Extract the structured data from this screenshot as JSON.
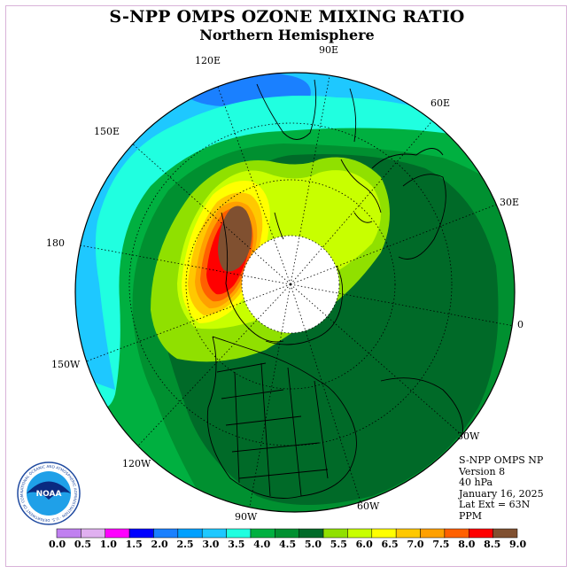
{
  "title": "S-NPP OMPS OZONE MIXING RATIO",
  "subtitle": "Northern Hemisphere",
  "longitude_labels": [
    "90E",
    "60E",
    "30E",
    "0",
    "30W",
    "60W",
    "90W",
    "120W",
    "150W",
    "180",
    "150E",
    "120E"
  ],
  "info": {
    "product": "S-NPP OMPS NP",
    "version": "Version 8",
    "level": "40 hPa",
    "date": "January 16, 2025",
    "lat_ext": "Lat Ext = 63N",
    "units": "PPM"
  },
  "logo": {
    "text": "NOAA",
    "ring_text": "NATIONAL OCEANIC AND ATMOSPHERIC ADMINISTRATION · U.S. DEPARTMENT OF COMMERCE"
  },
  "colorbar": {
    "labels": [
      "0.0",
      "0.5",
      "1.0",
      "1.5",
      "2.0",
      "2.5",
      "3.0",
      "3.5",
      "4.0",
      "4.5",
      "5.0",
      "5.5",
      "6.0",
      "6.5",
      "7.0",
      "7.5",
      "8.0",
      "8.5",
      "9.0"
    ],
    "colors": [
      "#c080f0",
      "#e0b0f0",
      "#ff00ff",
      "#0000ff",
      "#1a80ff",
      "#00a0ff",
      "#1ec8ff",
      "#20ffe0",
      "#00b040",
      "#009030",
      "#006a28",
      "#90e000",
      "#c8ff00",
      "#ffff00",
      "#ffc800",
      "#ffa000",
      "#ff6000",
      "#ff0000",
      "#805030"
    ]
  },
  "colors": {
    "frame": "#d9b3d9",
    "no_data": "#ffffff"
  }
}
